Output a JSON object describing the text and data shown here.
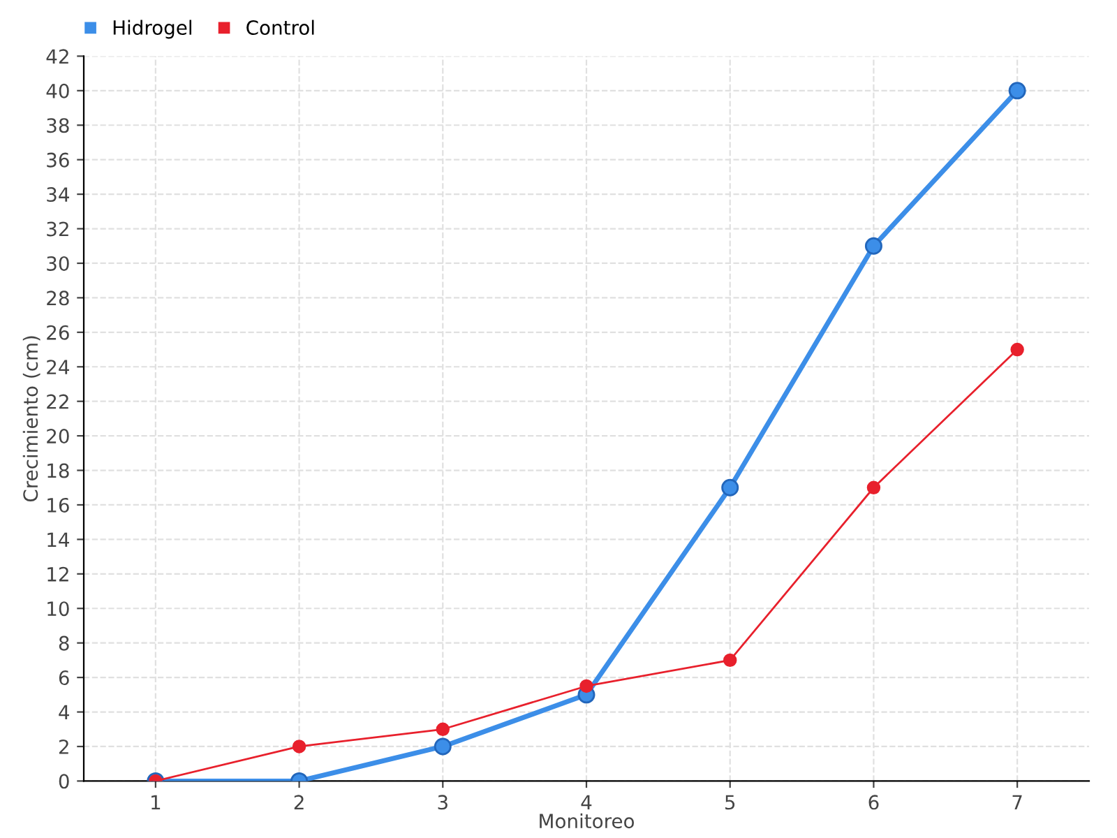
{
  "chart_data": {
    "type": "line",
    "xlabel": "Monitoreo",
    "ylabel": "Crecimiento (cm)",
    "categories": [
      "1",
      "2",
      "3",
      "4",
      "5",
      "6",
      "7"
    ],
    "series": [
      {
        "name": "Hidrogel",
        "color": "#3c8ee8",
        "values": [
          0,
          0,
          2,
          5,
          17,
          31,
          40
        ]
      },
      {
        "name": "Control",
        "color": "#e8202c",
        "values": [
          0,
          2,
          3,
          5.5,
          7,
          17,
          25
        ]
      }
    ],
    "ylim": [
      0,
      42
    ],
    "yticks": [
      0,
      2,
      4,
      6,
      8,
      10,
      12,
      14,
      16,
      18,
      20,
      22,
      24,
      26,
      28,
      30,
      32,
      34,
      36,
      38,
      40,
      42
    ],
    "grid": true,
    "legend": "top left",
    "marker": "circle",
    "line_style": "solid"
  }
}
